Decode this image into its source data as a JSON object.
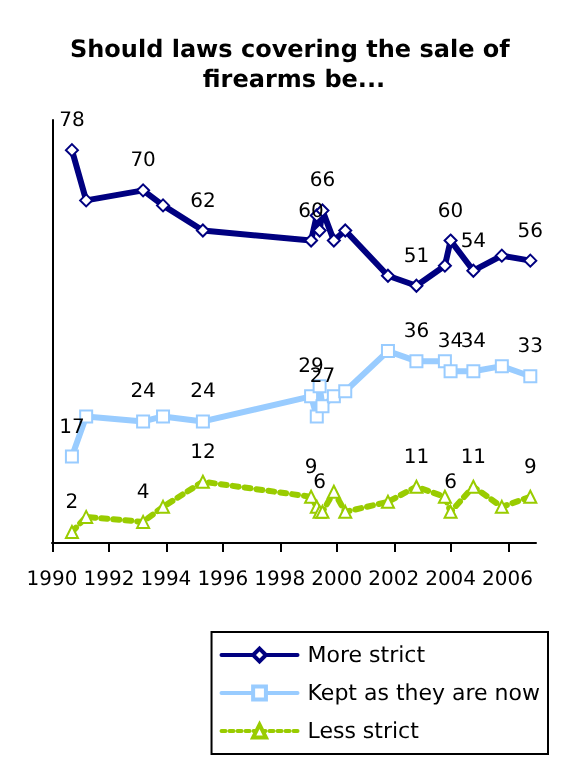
{
  "chart_data": {
    "type": "line",
    "title": "Should laws covering the sale of firearms be...",
    "x": [
      1990.7,
      1991.2,
      1993.2,
      1993.9,
      1995.3,
      1999.1,
      1999.3,
      1999.4,
      1999.5,
      1999.9,
      2000.3,
      2001.8,
      2002.8,
      2003.8,
      2004.0,
      2004.8,
      2005.8,
      2006.8
    ],
    "series": [
      {
        "name": "More strict",
        "color": "#000080",
        "marker": "diamond",
        "line_style": "solid",
        "values": [
          78,
          68,
          70,
          67,
          62,
          60,
          65,
          62,
          66,
          60,
          62,
          53,
          51,
          55,
          60,
          54,
          57,
          56
        ],
        "value_labels": [
          "78",
          null,
          "70",
          null,
          "62",
          "60",
          null,
          null,
          "66",
          null,
          null,
          null,
          "51",
          null,
          "60",
          "54",
          null,
          "56"
        ]
      },
      {
        "name": "Kept as they are now",
        "color": "#99ccff",
        "marker": "square",
        "line_style": "solid",
        "values": [
          17,
          25,
          24,
          25,
          24,
          29,
          25,
          31,
          27,
          29,
          30,
          38,
          36,
          36,
          34,
          34,
          35,
          33
        ],
        "value_labels": [
          "17",
          null,
          "24",
          null,
          "24",
          "29",
          null,
          null,
          "27",
          null,
          null,
          null,
          "36",
          null,
          "34",
          "34",
          null,
          "33"
        ]
      },
      {
        "name": "Less strict",
        "color": "#99cc00",
        "marker": "triangle",
        "line_style": "dotted",
        "values": [
          2,
          5,
          4,
          7,
          12,
          9,
          7,
          6,
          6,
          10,
          6,
          8,
          11,
          9,
          6,
          11,
          7,
          9
        ],
        "value_labels": [
          "2",
          null,
          "4",
          null,
          "12",
          "9",
          null,
          "6",
          null,
          null,
          null,
          null,
          "11",
          null,
          "6",
          "11",
          null,
          "9"
        ]
      }
    ],
    "xlim": [
      1990,
      2007
    ],
    "xticks": [
      1990,
      1992,
      1994,
      1996,
      1998,
      2000,
      2002,
      2004,
      2006
    ],
    "ylim": [
      0,
      84
    ],
    "tick_labels": "x",
    "grid": false,
    "legend": "bottom right"
  }
}
